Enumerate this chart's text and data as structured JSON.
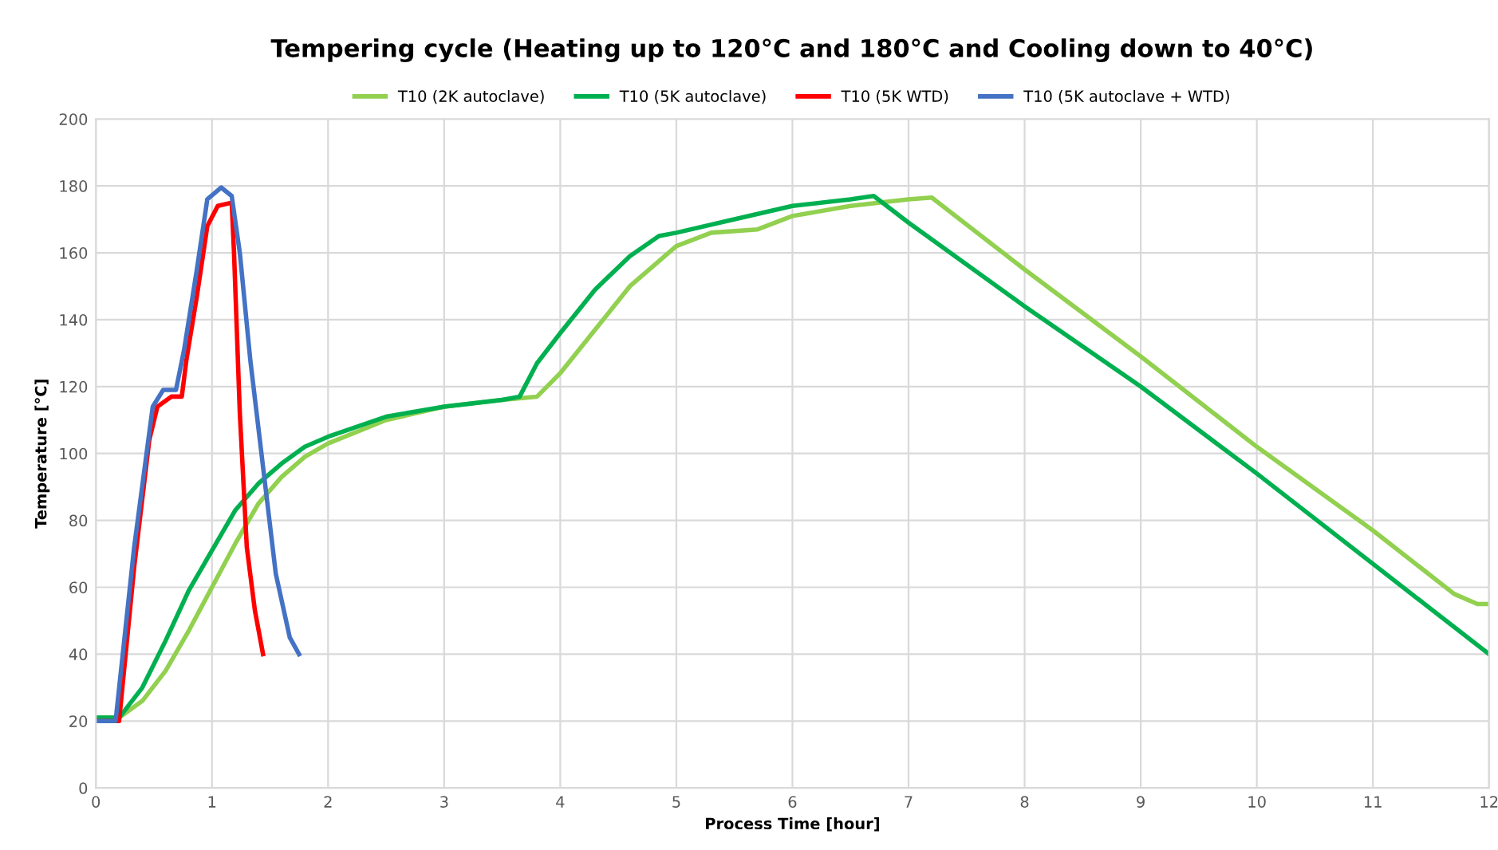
{
  "chart_data": {
    "type": "line",
    "title": "Tempering cycle (Heating up to 120°C and 180°C and Cooling down to 40°C)",
    "xlabel": "Process Time [hour]",
    "ylabel": "Temperature [°C]",
    "xlim": [
      0,
      12
    ],
    "xticks": [
      0,
      1,
      2,
      3,
      4,
      5,
      6,
      7,
      8,
      9,
      10,
      11,
      12
    ],
    "ylim": [
      0,
      200
    ],
    "yticks": [
      0,
      20,
      40,
      60,
      80,
      100,
      120,
      140,
      160,
      180,
      200
    ],
    "grid": true,
    "legend": "top",
    "marker": "none",
    "line_style": "solid",
    "series": [
      {
        "name": "T10 (2K autoclave)",
        "color": "#92d050",
        "x": [
          0,
          0.2,
          0.4,
          0.6,
          0.8,
          1.0,
          1.2,
          1.4,
          1.6,
          1.8,
          2.0,
          2.5,
          3.0,
          3.5,
          3.8,
          4.0,
          4.3,
          4.6,
          5.0,
          5.3,
          5.7,
          6.0,
          6.5,
          7.0,
          7.2,
          8,
          9,
          10,
          11,
          11.7,
          11.9,
          12
        ],
        "values": [
          21,
          21,
          26,
          35,
          47,
          60,
          73,
          85,
          93,
          99,
          103,
          110,
          114,
          116,
          117,
          124,
          137,
          150,
          162,
          166,
          167,
          171,
          174,
          176,
          176.5,
          155,
          129,
          102,
          77,
          58,
          55,
          55
        ]
      },
      {
        "name": "T10 (5K autoclave)",
        "color": "#00b050",
        "x": [
          0,
          0.2,
          0.4,
          0.6,
          0.8,
          1.0,
          1.2,
          1.4,
          1.6,
          1.8,
          2.0,
          2.5,
          3.0,
          3.5,
          3.65,
          3.8,
          4.0,
          4.3,
          4.6,
          4.85,
          5.0,
          5.5,
          6.0,
          6.5,
          6.7,
          7,
          8,
          9,
          10,
          11,
          12
        ],
        "values": [
          21,
          21,
          30,
          44,
          59,
          71,
          83,
          91,
          97,
          102,
          105,
          111,
          114,
          116,
          117,
          127,
          136,
          149,
          159,
          165,
          166,
          170,
          174,
          176,
          177,
          169,
          144,
          120,
          94,
          67,
          40
        ]
      },
      {
        "name": "T10 (5K WTD)",
        "color": "#ff0000",
        "x": [
          0,
          0.2,
          0.33,
          0.46,
          0.53,
          0.65,
          0.74,
          0.78,
          0.87,
          0.96,
          1.05,
          1.17,
          1.19,
          1.24,
          1.3,
          1.37,
          1.44
        ],
        "values": [
          20,
          20,
          66,
          104,
          114,
          117,
          117,
          128,
          147,
          168,
          174,
          175,
          160,
          112,
          72,
          53,
          40
        ]
      },
      {
        "name": "T10 (5K autoclave + WTD)",
        "color": "#4472c4",
        "x": [
          0,
          0.17,
          0.33,
          0.49,
          0.58,
          0.69,
          0.76,
          0.87,
          0.96,
          1.08,
          1.17,
          1.24,
          1.33,
          1.44,
          1.55,
          1.67,
          1.75
        ],
        "values": [
          20,
          20,
          72,
          114,
          119,
          119,
          131,
          155,
          176,
          179.5,
          177,
          160,
          128,
          96,
          64,
          45,
          40
        ]
      }
    ]
  }
}
